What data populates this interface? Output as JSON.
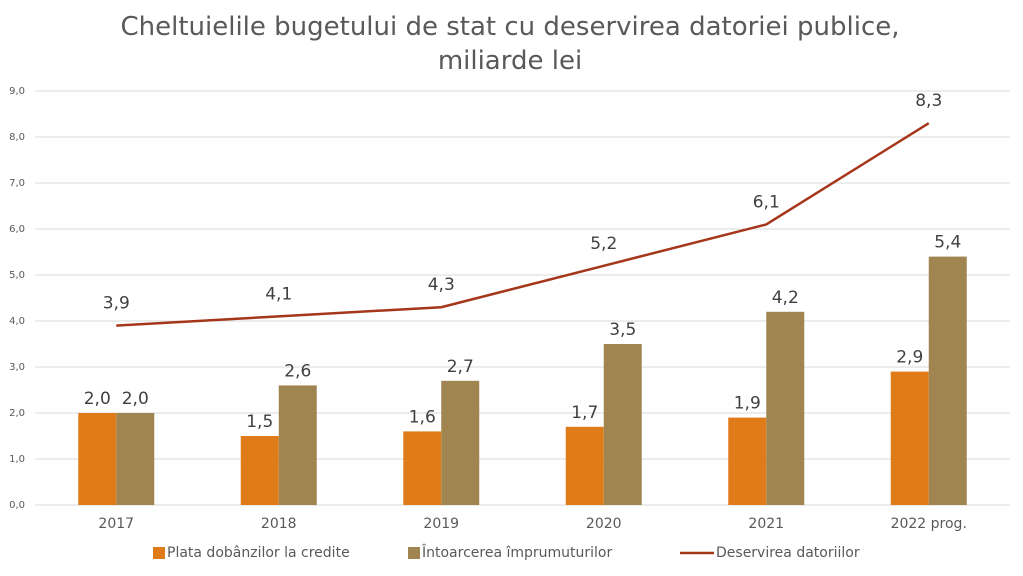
{
  "chart_data": {
    "type": "bar",
    "title": "Cheltuielile bugetului de stat cu deservirea datoriei publice, miliarde lei",
    "categories": [
      "2017",
      "2018",
      "2019",
      "2020",
      "2021",
      "2022 prog."
    ],
    "series": [
      {
        "name": "Plata dobânzilor la credite",
        "type": "bar",
        "color": "#e07b1a",
        "values": [
          2.0,
          1.5,
          1.6,
          1.7,
          1.9,
          2.9
        ],
        "value_labels": [
          "2,0",
          "1,5",
          "1,6",
          "1,7",
          "1,9",
          "2,9"
        ]
      },
      {
        "name": "Întoarcerea împrumuturilor",
        "type": "bar",
        "color": "#a08550",
        "values": [
          2.0,
          2.6,
          2.7,
          3.5,
          4.2,
          5.4
        ],
        "value_labels": [
          "2,0",
          "2,6",
          "2,7",
          "3,5",
          "4,2",
          "5,4"
        ]
      },
      {
        "name": "Deservirea datoriilor",
        "type": "line",
        "color": "#a5361a",
        "values": [
          3.9,
          4.1,
          4.3,
          5.2,
          6.1,
          8.3
        ],
        "value_labels": [
          "3,9",
          "4,1",
          "4,3",
          "5,2",
          "6,1",
          "8,3"
        ]
      }
    ],
    "ylim": [
      0,
      9
    ],
    "yticks": [
      {
        "value": 0,
        "label": "0,0"
      },
      {
        "value": 1,
        "label": "1,0"
      },
      {
        "value": 2,
        "label": "2,0"
      },
      {
        "value": 3,
        "label": "3,0"
      },
      {
        "value": 4,
        "label": "4,0"
      },
      {
        "value": 5,
        "label": "5,0"
      },
      {
        "value": 6,
        "label": "6,0"
      },
      {
        "value": 7,
        "label": "7,0"
      },
      {
        "value": 8,
        "label": "8,0"
      },
      {
        "value": 9,
        "label": "9,0"
      }
    ],
    "grid": true,
    "legend": "bottom"
  }
}
